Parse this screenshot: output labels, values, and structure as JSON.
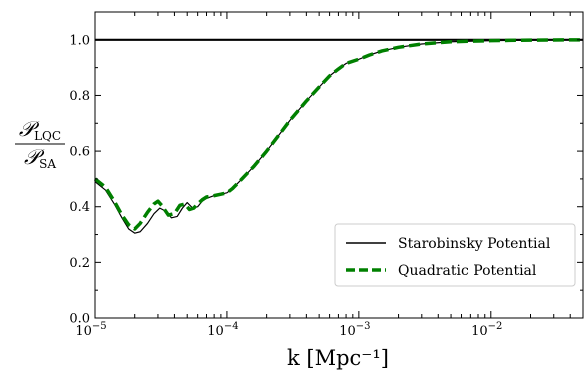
{
  "chart_data": {
    "type": "line",
    "title": "",
    "xlabel": "k [Mpc⁻¹]",
    "ylabel": {
      "numerator": "𝒫",
      "numerator_sub": "LQC",
      "denominator": "𝒫",
      "denominator_sub": "SA"
    },
    "xscale": "log",
    "xlim": [
      1e-05,
      0.05
    ],
    "ylim": [
      0.0,
      1.1
    ],
    "xticks": [
      {
        "value": 1e-05,
        "base": "10",
        "exp": "−5"
      },
      {
        "value": 0.0001,
        "base": "10",
        "exp": "−4"
      },
      {
        "value": 0.001,
        "base": "10",
        "exp": "−3"
      },
      {
        "value": 0.01,
        "base": "10",
        "exp": "−2"
      }
    ],
    "yticks": [
      {
        "value": 0.0,
        "label": "0.0"
      },
      {
        "value": 0.2,
        "label": "0.2"
      },
      {
        "value": 0.4,
        "label": "0.4"
      },
      {
        "value": 0.6,
        "label": "0.6"
      },
      {
        "value": 0.8,
        "label": "0.8"
      },
      {
        "value": 1.0,
        "label": "1.0"
      }
    ],
    "reference_line": {
      "y": 1.0,
      "color": "#000000"
    },
    "legend_position": "lower-right",
    "grid": false,
    "series": [
      {
        "name": "Starobinsky Potential",
        "color": "#000000",
        "style": "solid",
        "x": [
          1e-05,
          1.2e-05,
          1.4e-05,
          1.6e-05,
          1.8e-05,
          2e-05,
          2.2e-05,
          2.5e-05,
          2.8e-05,
          3.1e-05,
          3.4e-05,
          3.8e-05,
          4.2e-05,
          4.6e-05,
          5e-05,
          5.5e-05,
          6e-05,
          6.5e-05,
          7e-05,
          8e-05,
          9e-05,
          0.0001,
          0.00011,
          0.00013,
          0.00016,
          0.0002,
          0.00025,
          0.0003,
          0.0004,
          0.0005,
          0.0006,
          0.0007,
          0.0008,
          0.001,
          0.0012,
          0.0015,
          0.002,
          0.003,
          0.005,
          0.01,
          0.02,
          0.05
        ],
        "y": [
          0.49,
          0.46,
          0.41,
          0.36,
          0.32,
          0.305,
          0.31,
          0.34,
          0.375,
          0.395,
          0.385,
          0.36,
          0.365,
          0.395,
          0.415,
          0.395,
          0.4,
          0.42,
          0.43,
          0.44,
          0.445,
          0.45,
          0.465,
          0.5,
          0.545,
          0.6,
          0.66,
          0.71,
          0.78,
          0.83,
          0.87,
          0.895,
          0.915,
          0.93,
          0.945,
          0.96,
          0.973,
          0.985,
          0.993,
          0.997,
          0.999,
          1.0
        ]
      },
      {
        "name": "Quadratic Potential",
        "color": "#008000",
        "style": "dashed",
        "x": [
          1e-05,
          1.2e-05,
          1.4e-05,
          1.6e-05,
          1.8e-05,
          2e-05,
          2.2e-05,
          2.5e-05,
          2.8e-05,
          3e-05,
          3.2e-05,
          3.6e-05,
          4e-05,
          4.4e-05,
          4.8e-05,
          5.2e-05,
          5.6e-05,
          6e-05,
          6.5e-05,
          7e-05,
          8e-05,
          9e-05,
          0.0001,
          0.00011,
          0.00013,
          0.00016,
          0.0002,
          0.00025,
          0.0003,
          0.0004,
          0.0005,
          0.0006,
          0.0007,
          0.0008,
          0.001,
          0.0012,
          0.0015,
          0.002,
          0.003,
          0.005,
          0.01,
          0.02,
          0.05
        ],
        "y": [
          0.5,
          0.47,
          0.42,
          0.37,
          0.335,
          0.32,
          0.34,
          0.38,
          0.41,
          0.42,
          0.405,
          0.37,
          0.375,
          0.405,
          0.41,
          0.39,
          0.395,
          0.41,
          0.425,
          0.435,
          0.44,
          0.445,
          0.45,
          0.465,
          0.5,
          0.545,
          0.6,
          0.66,
          0.71,
          0.78,
          0.83,
          0.87,
          0.895,
          0.915,
          0.93,
          0.945,
          0.96,
          0.973,
          0.985,
          0.993,
          0.997,
          0.999,
          1.0
        ]
      }
    ]
  }
}
